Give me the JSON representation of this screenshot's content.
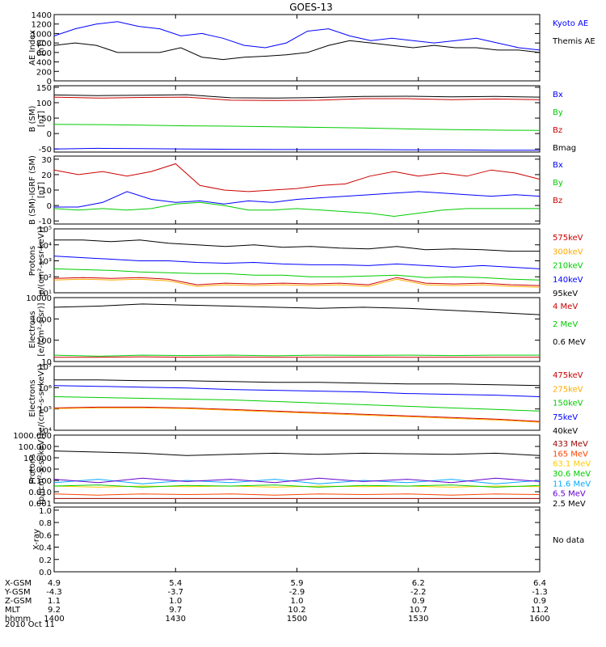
{
  "chart_data": {
    "type": "line",
    "title": "GOES-13",
    "time_ticks": [
      "1400",
      "1430",
      "1500",
      "1530",
      "1600"
    ],
    "panels": [
      {
        "id": "ae",
        "ylabel": [
          "AE Index",
          "[nT]"
        ],
        "yticks": [
          "0",
          "200",
          "400",
          "600",
          "800",
          "1000",
          "1200",
          "1400"
        ],
        "ylim": [
          0,
          1400
        ],
        "series": [
          {
            "name": "Kyoto AE",
            "color": "#0000ff",
            "values": [
              950,
              1100,
              1200,
              1250,
              1150,
              1100,
              950,
              1000,
              900,
              750,
              700,
              800,
              1050,
              1100,
              950,
              850,
              900,
              850,
              800,
              850,
              900,
              800,
              700,
              650
            ]
          },
          {
            "name": "Themis AE",
            "color": "#000000",
            "values": [
              750,
              800,
              750,
              600,
              600,
              600,
              700,
              500,
              450,
              500,
              520,
              550,
              600,
              750,
              850,
              800,
              750,
              700,
              750,
              700,
              700,
              650,
              650,
              600
            ]
          }
        ]
      },
      {
        "id": "bsm",
        "ylabel": [
          "B (SM)",
          "[nT]"
        ],
        "yticks": [
          "-50",
          "0",
          "50",
          "100",
          "150"
        ],
        "ylim": [
          -60,
          155
        ],
        "series": [
          {
            "name": "Bx",
            "color": "#0000ff",
            "values": [
              -50,
              -48,
              -49,
              -50,
              -51,
              -52,
              -52,
              -52,
              -53,
              -53,
              -54,
              -54
            ]
          },
          {
            "name": "By",
            "color": "#00cc00",
            "values": [
              30,
              29,
              27,
              25,
              24,
              22,
              20,
              18,
              15,
              13,
              11,
              10
            ]
          },
          {
            "name": "Bz",
            "color": "#cc0000",
            "values": [
              118,
              115,
              117,
              118,
              108,
              107,
              108,
              113,
              113,
              110,
              112,
              110
            ]
          },
          {
            "name": "Bmag",
            "color": "#000000",
            "values": [
              125,
              123,
              124,
              126,
              116,
              115,
              117,
              120,
              121,
              119,
              120,
              118
            ]
          }
        ]
      },
      {
        "id": "bigrf",
        "ylabel": [
          "B (SM)-IGRF (SM)",
          "[nT]"
        ],
        "yticks": [
          "-10",
          "0",
          "10",
          "20",
          "30"
        ],
        "ylim": [
          -12,
          32
        ],
        "series": [
          {
            "name": "Bx",
            "color": "#0000ff",
            "values": [
              -1,
              -1,
              2,
              9,
              4,
              2,
              3,
              1,
              3,
              2,
              4,
              5,
              6,
              7,
              8,
              9,
              8,
              7,
              6,
              7,
              6
            ]
          },
          {
            "name": "By",
            "color": "#00cc00",
            "values": [
              -2,
              -3,
              -2,
              -3,
              -2,
              1,
              2,
              0,
              -3,
              -3,
              -2,
              -3,
              -4,
              -5,
              -7,
              -5,
              -3,
              -2,
              -2,
              -2,
              -2
            ]
          },
          {
            "name": "Bz",
            "color": "#cc0000",
            "values": [
              23,
              20,
              22,
              19,
              22,
              27,
              13,
              10,
              9,
              10,
              11,
              13,
              14,
              19,
              22,
              19,
              21,
              19,
              23,
              21,
              17
            ]
          }
        ]
      },
      {
        "id": "protons_kev",
        "ylabel": [
          "Protons",
          "p/(cm²-s-sr-keV)]"
        ],
        "yticks": [
          "10¹",
          "10²",
          "10³",
          "10⁴",
          "10⁵"
        ],
        "log": true,
        "ylim": [
          1,
          5
        ],
        "series": [
          {
            "name": "575keV",
            "color": "#cc0000",
            "values": [
              1.9,
              1.95,
              1.9,
              1.95,
              1.85,
              1.5,
              1.6,
              1.55,
              1.6,
              1.55,
              1.6,
              1.5,
              1.95,
              1.6,
              1.55,
              1.6,
              1.5,
              1.45
            ]
          },
          {
            "name": "300keV",
            "color": "#ffaa00",
            "values": [
              1.8,
              1.85,
              1.8,
              1.85,
              1.75,
              1.4,
              1.5,
              1.45,
              1.5,
              1.45,
              1.5,
              1.4,
              1.85,
              1.5,
              1.45,
              1.5,
              1.4,
              1.35
            ]
          },
          {
            "name": "210keV",
            "color": "#00cc00",
            "values": [
              2.5,
              2.45,
              2.4,
              2.3,
              2.25,
              2.2,
              2.2,
              2.1,
              2.1,
              2.0,
              2.0,
              2.05,
              2.1,
              1.95,
              2.0,
              1.95,
              1.85,
              1.8
            ]
          },
          {
            "name": "140keV",
            "color": "#0000ff",
            "values": [
              3.3,
              3.2,
              3.1,
              3.0,
              3.0,
              2.9,
              2.85,
              2.9,
              2.8,
              2.75,
              2.75,
              2.7,
              2.8,
              2.7,
              2.6,
              2.7,
              2.6,
              2.5
            ]
          },
          {
            "name": "95keV",
            "color": "#000000",
            "values": [
              4.3,
              4.3,
              4.2,
              4.3,
              4.1,
              4.0,
              3.9,
              4.0,
              3.85,
              3.9,
              3.8,
              3.75,
              3.9,
              3.7,
              3.75,
              3.7,
              3.6,
              3.6
            ]
          }
        ]
      },
      {
        "id": "electrons_mev",
        "ylabel": [
          "Electrons",
          "[e/(cm²-s-sr)]"
        ],
        "yticks": [
          "10",
          "100",
          "1000",
          "10000"
        ],
        "log": true,
        "ylim": [
          1,
          4
        ],
        "series": [
          {
            "name": "4 MeV",
            "color": "#cc0000",
            "values": [
              1.2,
              1.2,
              1.22,
              1.2,
              1.21,
              1.2,
              1.2,
              1.21,
              1.2,
              1.2,
              1.2,
              1.2
            ]
          },
          {
            "name": "2 MeV",
            "color": "#00cc00",
            "values": [
              1.3,
              1.25,
              1.3,
              1.28,
              1.3,
              1.27,
              1.3,
              1.29,
              1.3,
              1.28,
              1.3,
              1.3
            ]
          },
          {
            "name": "0.6 MeV",
            "color": "#000000",
            "values": [
              3.55,
              3.6,
              3.7,
              3.65,
              3.6,
              3.55,
              3.5,
              3.55,
              3.5,
              3.4,
              3.3,
              3.2
            ]
          }
        ]
      },
      {
        "id": "electrons_kev",
        "ylabel": [
          "Electrons",
          "e/(cm²-s-sr-keV)]"
        ],
        "yticks": [
          "10⁴",
          "10⁵",
          "10⁶",
          "10⁷"
        ],
        "log": true,
        "ylim": [
          3,
          7
        ],
        "series": [
          {
            "name": "475keV",
            "color": "#cc0000",
            "values": [
              4.4,
              4.45,
              4.45,
              4.4,
              4.3,
              4.2,
              4.1,
              4.0,
              3.9,
              3.8,
              3.7,
              3.55
            ]
          },
          {
            "name": "275keV",
            "color": "#ffaa00",
            "values": [
              4.35,
              4.4,
              4.4,
              4.35,
              4.25,
              4.15,
              4.05,
              3.95,
              3.85,
              3.75,
              3.65,
              3.5
            ]
          },
          {
            "name": "150keV",
            "color": "#00cc00",
            "values": [
              5.1,
              5.05,
              5.0,
              4.95,
              4.9,
              4.8,
              4.7,
              4.6,
              4.5,
              4.4,
              4.3,
              4.2
            ]
          },
          {
            "name": "75keV",
            "color": "#0000ff",
            "values": [
              5.8,
              5.75,
              5.7,
              5.65,
              5.55,
              5.5,
              5.45,
              5.4,
              5.3,
              5.25,
              5.2,
              5.1
            ]
          },
          {
            "name": "40keV",
            "color": "#000000",
            "values": [
              6.15,
              6.15,
              6.1,
              6.1,
              6.05,
              6.0,
              6.0,
              5.95,
              5.9,
              5.9,
              5.85,
              5.8
            ]
          }
        ]
      },
      {
        "id": "protons_mev",
        "ylabel": [
          "Protons",
          "[p/(cm²-s-sr-keV)]"
        ],
        "yticks": [
          "0.001",
          "0.010",
          "0.100",
          "1.000",
          "10.000",
          "100.000",
          "1000.000"
        ],
        "log": true,
        "ylim": [
          -3,
          3
        ],
        "series": [
          {
            "name": "433 MeV",
            "color": "#990000",
            "values": [
              -2.6,
              -2.6,
              -2.6,
              -2.6,
              -2.6,
              -2.6,
              -2.6,
              -2.6,
              -2.6,
              -2.6,
              -2.6,
              -2.6
            ]
          },
          {
            "name": "165 MeV",
            "color": "#ff4400",
            "values": [
              -2.2,
              -2.3,
              -2.2,
              -2.25,
              -2.2,
              -2.3,
              -2.2,
              -2.25,
              -2.2,
              -2.3,
              -2.2,
              -2.25
            ]
          },
          {
            "name": "63.1 MeV",
            "color": "#ffcc00",
            "values": [
              -1.5,
              -1.6,
              -1.5,
              -1.55,
              -1.5,
              -1.6,
              -1.5,
              -1.55,
              -1.5,
              -1.6,
              -1.5,
              -1.55
            ]
          },
          {
            "name": "30.6 MeV",
            "color": "#00cc00",
            "values": [
              -1.5,
              -1.4,
              -1.6,
              -1.45,
              -1.5,
              -1.4,
              -1.6,
              -1.45,
              -1.5,
              -1.4,
              -1.6,
              -1.45
            ]
          },
          {
            "name": "11.6 MeV",
            "color": "#00aaff",
            "values": [
              -1.2,
              -0.9,
              -1.3,
              -1.0,
              -1.2,
              -0.9,
              -1.3,
              -1.0,
              -1.2,
              -0.9,
              -1.3,
              -1.0
            ]
          },
          {
            "name": "6.5 MeV",
            "color": "#6600cc",
            "values": [
              -0.9,
              -1.2,
              -0.8,
              -1.1,
              -0.9,
              -1.2,
              -0.8,
              -1.1,
              -0.9,
              -1.2,
              -0.8,
              -1.1
            ]
          },
          {
            "name": "2.5 MeV",
            "color": "#000000",
            "values": [
              1.6,
              1.5,
              1.4,
              1.2,
              1.3,
              1.4,
              1.3,
              1.4,
              1.35,
              1.3,
              1.4,
              1.2
            ]
          }
        ]
      },
      {
        "id": "xray",
        "ylabel": [
          "X-ray"
        ],
        "yticks": [
          "0.0",
          "0.2",
          "0.4",
          "0.6",
          "0.8",
          "1.0"
        ],
        "ylim": [
          0,
          1.05
        ],
        "no_data_text": "No data",
        "series": []
      }
    ]
  },
  "orbit": {
    "rows": [
      {
        "label": "X-GSM",
        "values": [
          "4.9",
          "5.4",
          "5.9",
          "6.2",
          "6.4"
        ]
      },
      {
        "label": "Y-GSM",
        "values": [
          "-4.3",
          "-3.7",
          "-2.9",
          "-2.2",
          "-1.3"
        ]
      },
      {
        "label": "Z-GSM",
        "values": [
          "1.1",
          "1.0",
          "1.0",
          "0.9",
          "0.9"
        ]
      },
      {
        "label": "MLT",
        "values": [
          "9.2",
          "9.7",
          "10.2",
          "10.7",
          "11.2"
        ]
      },
      {
        "label": "hhmm",
        "values": [
          "1400",
          "1430",
          "1500",
          "1530",
          "1600"
        ]
      }
    ],
    "date": "2010 Oct 11"
  }
}
